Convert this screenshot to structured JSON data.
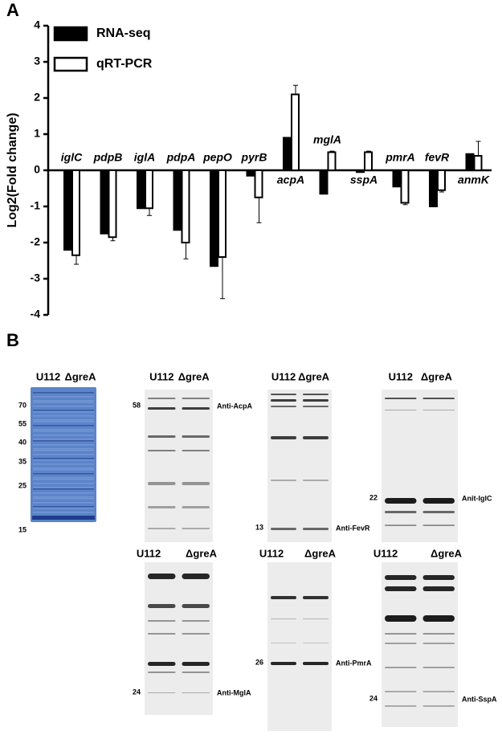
{
  "chart_data": {
    "type": "bar",
    "ylabel": "Log2(Fold change)",
    "panel_label": "A",
    "categories": [
      "iglC",
      "pdpB",
      "iglA",
      "pdpA",
      "pepO",
      "pyrB",
      "acpA",
      "mglA",
      "sspA",
      "pmrA",
      "fevR",
      "anmK"
    ],
    "series": [
      {
        "name": "RNA-seq",
        "color": "#000000",
        "values": [
          -2.2,
          -1.75,
          -1.05,
          -1.65,
          -2.65,
          -0.15,
          0.9,
          -0.65,
          -0.05,
          -0.45,
          -1.0,
          0.45
        ]
      },
      {
        "name": "qRT-PCR",
        "color": "#ffffff",
        "values": [
          -2.35,
          -1.85,
          -1.05,
          -2.0,
          -2.4,
          -0.75,
          2.1,
          0.5,
          0.5,
          -0.9,
          -0.55,
          0.4
        ],
        "errors": [
          0.25,
          0.1,
          0.2,
          0.45,
          1.15,
          0.7,
          0.25,
          0.03,
          0.03,
          0.05,
          0.05,
          0.4
        ]
      }
    ],
    "ylim": [
      -4,
      4
    ],
    "yticks": [
      -4,
      -3,
      -2,
      -1,
      0,
      1,
      2,
      3,
      4
    ],
    "legend": "top-left",
    "grid": false
  },
  "panel_b": {
    "label": "B",
    "ladder": {
      "header": [
        "U112",
        "ΔgreA"
      ],
      "markers": [
        70,
        55,
        40,
        35,
        25,
        15
      ]
    },
    "blots": [
      {
        "header": [
          "U112",
          "ΔgreA"
        ],
        "marker": 58,
        "antibody": "Anti-AcpA"
      },
      {
        "header": [
          "U112",
          "ΔgreA"
        ],
        "marker": 13,
        "antibody": "Anti-FevR"
      },
      {
        "header": [
          "U112",
          "ΔgreA"
        ],
        "marker": 22,
        "antibody": "Anit-IglC"
      },
      {
        "header": [
          "U112",
          "ΔgreA"
        ],
        "marker": 24,
        "antibody": "Anti-MglA"
      },
      {
        "header": [
          "U112",
          "ΔgreA"
        ],
        "marker": 26,
        "antibody": "Anti-PmrA"
      },
      {
        "header": [
          "U112",
          "ΔgreA"
        ],
        "marker": 24,
        "antibody": "Anti-SspA"
      }
    ]
  }
}
